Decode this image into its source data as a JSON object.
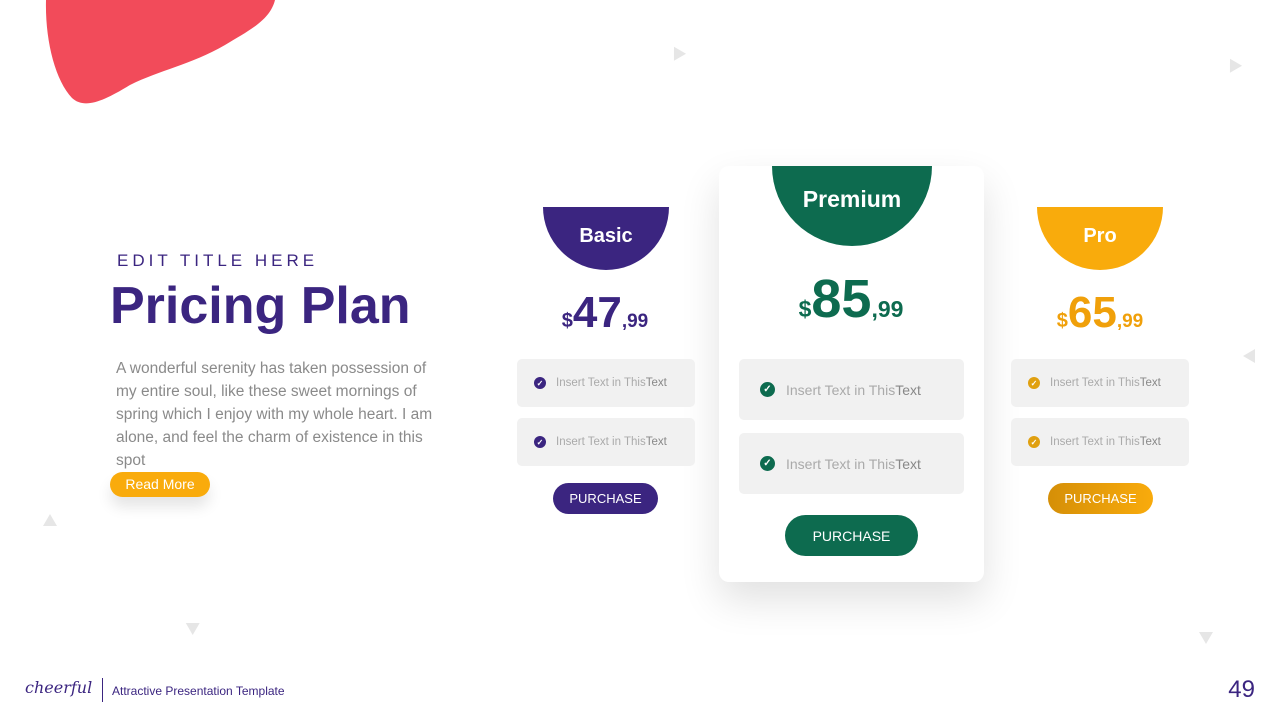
{
  "left": {
    "subtitle": "EDIT TITLE HERE",
    "title": "Pricing Plan",
    "paragraph": "A wonderful serenity has taken possession of my entire soul, like these sweet mornings of spring which I enjoy with my whole heart. I am alone, and feel the charm of existence in this spot",
    "read_more": "Read More"
  },
  "plans": [
    {
      "name": "Basic",
      "currency": "$",
      "amount": "47",
      "cents": ",99",
      "color": "#3b2580",
      "features": [
        {
          "text": "Insert Text in This ",
          "bold": "Text"
        },
        {
          "text": "Insert Text in This ",
          "bold": "Text"
        }
      ],
      "button": "PURCHASE"
    },
    {
      "name": "Premium",
      "currency": "$",
      "amount": "85",
      "cents": ",99",
      "color": "#0d6b4f",
      "features": [
        {
          "text": "Insert Text in This ",
          "bold": "Text"
        },
        {
          "text": "Insert Text in This ",
          "bold": "Text"
        }
      ],
      "button": "PURCHASE"
    },
    {
      "name": "Pro",
      "currency": "$",
      "amount": "65",
      "cents": ",99",
      "color": "#f9ab0c",
      "features": [
        {
          "text": "Insert Text in This ",
          "bold": "Text"
        },
        {
          "text": "Insert Text in This ",
          "bold": "Text"
        }
      ],
      "button": "PURCHASE"
    }
  ],
  "footer": {
    "logo": "cheerful",
    "tagline": "Attractive Presentation Template",
    "page": "49"
  },
  "colors": {
    "blob": "#f24b5a",
    "purple": "#3b2580",
    "green": "#0d6b4f",
    "orange": "#f9ab0c"
  }
}
